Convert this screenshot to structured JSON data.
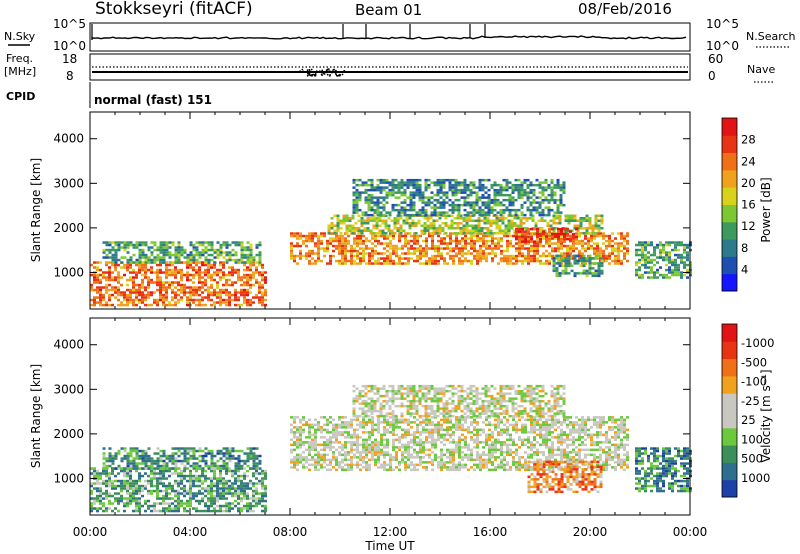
{
  "header": {
    "title": "Stokkseyri (fitACF)",
    "beam": "Beam 01",
    "date": "08/Feb/2016"
  },
  "status_panel": {
    "nsky_label": "N.Sky",
    "nsky_ticks": [
      "10^5",
      "10^0"
    ],
    "nsearch_label": "N.Search",
    "nsearch_ticks": [
      "10^5",
      "10^0"
    ],
    "freq_label": "Freq.",
    "freq_unit": "[MHz]",
    "freq_ticks": [
      "18",
      "8"
    ],
    "nave_label": "Nave",
    "nave_ticks": [
      "60",
      "0"
    ],
    "cpid_label": "CPID",
    "cpid_value": "normal (fast) 151"
  },
  "chart_data": [
    {
      "type": "heatmap",
      "title": "",
      "xlabel": "Time UT",
      "ylabel": "Slant Range [km]",
      "x_ticks": [
        "00:00",
        "04:00",
        "08:00",
        "12:00",
        "16:00",
        "20:00",
        "00:00"
      ],
      "xlim": [
        0,
        24
      ],
      "y_ticks": [
        1000,
        2000,
        3000,
        4000
      ],
      "ylim": [
        180,
        4600
      ],
      "colorbar": {
        "label": "Power [dB]",
        "ticks": [
          "4",
          "8",
          "12",
          "16",
          "20",
          "24",
          "28"
        ],
        "colors": [
          "#1515ff",
          "#1f4fb0",
          "#2e7a8c",
          "#3c9a5e",
          "#7dc832",
          "#d9d21c",
          "#f0a21e",
          "#f07018",
          "#e83414",
          "#e01414"
        ]
      },
      "regions": [
        {
          "t0": 0.0,
          "t1": 7.0,
          "r0": 250,
          "r1": 1250,
          "level": 0.75
        },
        {
          "t0": 0.5,
          "t1": 6.8,
          "r0": 1250,
          "r1": 1700,
          "level": 0.35
        },
        {
          "t0": 8.0,
          "t1": 21.5,
          "r0": 1200,
          "r1": 1900,
          "level": 0.7
        },
        {
          "t0": 9.5,
          "t1": 20.5,
          "r0": 1900,
          "r1": 2300,
          "level": 0.5
        },
        {
          "t0": 10.5,
          "t1": 19.0,
          "r0": 2300,
          "r1": 3100,
          "level": 0.3
        },
        {
          "t0": 17.0,
          "t1": 19.5,
          "r0": 1700,
          "r1": 2000,
          "level": 0.9
        },
        {
          "t0": 21.8,
          "t1": 24.0,
          "r0": 900,
          "r1": 1700,
          "level": 0.35
        },
        {
          "t0": 18.5,
          "t1": 20.5,
          "r0": 900,
          "r1": 1400,
          "level": 0.35
        }
      ]
    },
    {
      "type": "heatmap",
      "title": "",
      "xlabel": "Time UT",
      "ylabel": "Slant Range [km]",
      "x_ticks": [
        "00:00",
        "04:00",
        "08:00",
        "12:00",
        "16:00",
        "20:00",
        "00:00"
      ],
      "xlim": [
        0,
        24
      ],
      "y_ticks": [
        1000,
        2000,
        3000,
        4000
      ],
      "ylim": [
        180,
        4600
      ],
      "colorbar": {
        "label": "Velocity [m s⁻¹]",
        "ticks": [
          "1000",
          "500",
          "100",
          "25",
          "-25",
          "-100",
          "-500",
          "-1000"
        ],
        "colors": [
          "#1c3fa8",
          "#2e6e8e",
          "#3c8e5a",
          "#6cc83c",
          "#c8c8c0",
          "#c8c8c0",
          "#f0a21e",
          "#f07018",
          "#e83414",
          "#e01414"
        ]
      },
      "regions": [
        {
          "t0": 0.0,
          "t1": 7.0,
          "r0": 250,
          "r1": 1250,
          "level": 0.28
        },
        {
          "t0": 0.5,
          "t1": 6.8,
          "r0": 1250,
          "r1": 1700,
          "level": 0.25
        },
        {
          "t0": 8.0,
          "t1": 21.5,
          "r0": 1200,
          "r1": 2400,
          "level": 0.48
        },
        {
          "t0": 10.5,
          "t1": 19.0,
          "r0": 2400,
          "r1": 3100,
          "level": 0.48
        },
        {
          "t0": 21.8,
          "t1": 24.0,
          "r0": 700,
          "r1": 1700,
          "level": 0.22
        },
        {
          "t0": 17.5,
          "t1": 20.5,
          "r0": 700,
          "r1": 1400,
          "level": 0.72
        }
      ]
    }
  ]
}
